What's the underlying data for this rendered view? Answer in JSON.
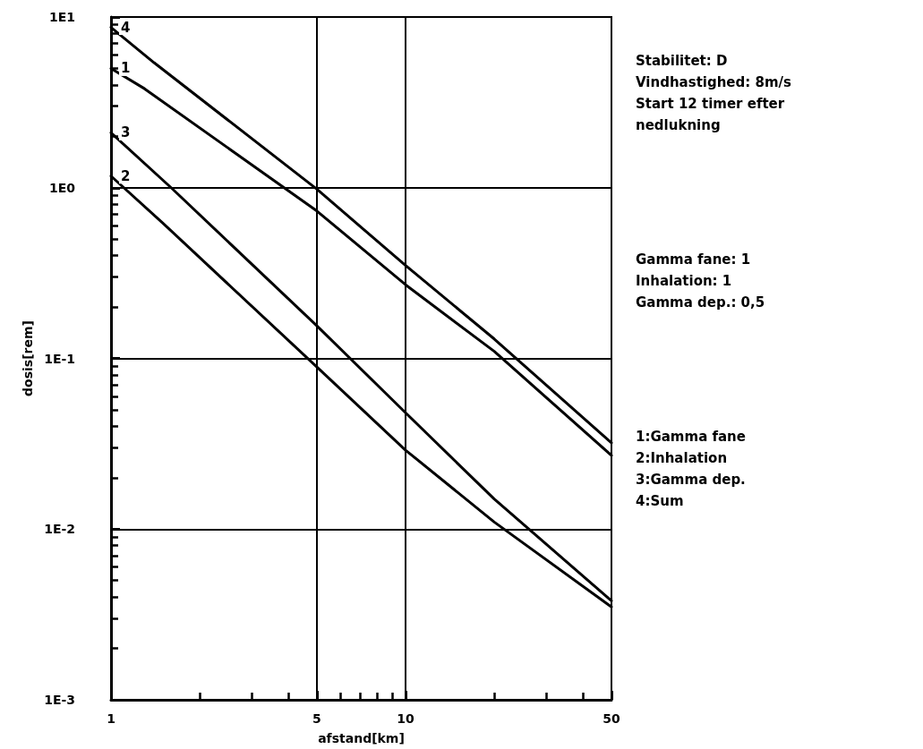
{
  "chart_data": {
    "type": "line",
    "xlabel": "afstand[km]",
    "ylabel": "dosis[rem]",
    "log": "xy",
    "xlim": [
      1,
      50
    ],
    "ylim": [
      0.001,
      10
    ],
    "xticks": [
      1,
      {
        "value": 2,
        "label": null
      },
      {
        "value": 3,
        "label": null
      },
      {
        "value": 4,
        "label": null
      },
      5,
      {
        "value": 6,
        "label": null
      },
      {
        "value": 7,
        "label": null
      },
      {
        "value": 8,
        "label": null
      },
      {
        "value": 9,
        "label": null
      },
      10,
      {
        "value": 20,
        "label": null
      },
      {
        "value": 30,
        "label": null
      },
      {
        "value": 40,
        "label": null
      },
      50
    ],
    "yticks": [
      {
        "value": 0.001,
        "label": "1E-3"
      },
      {
        "value": 0.002,
        "label": null
      },
      {
        "value": 0.003,
        "label": null
      },
      {
        "value": 0.004,
        "label": null
      },
      {
        "value": 0.005,
        "label": null
      },
      {
        "value": 0.006,
        "label": null
      },
      {
        "value": 0.007,
        "label": null
      },
      {
        "value": 0.008,
        "label": null
      },
      {
        "value": 0.009,
        "label": null
      },
      {
        "value": 0.01,
        "label": "1E-2"
      },
      {
        "value": 0.02,
        "label": null
      },
      {
        "value": 0.03,
        "label": null
      },
      {
        "value": 0.04,
        "label": null
      },
      {
        "value": 0.05,
        "label": null
      },
      {
        "value": 0.06,
        "label": null
      },
      {
        "value": 0.07,
        "label": null
      },
      {
        "value": 0.08,
        "label": null
      },
      {
        "value": 0.09,
        "label": null
      },
      {
        "value": 0.1,
        "label": "1E-1"
      },
      {
        "value": 0.2,
        "label": null
      },
      {
        "value": 0.3,
        "label": null
      },
      {
        "value": 0.4,
        "label": null
      },
      {
        "value": 0.5,
        "label": null
      },
      {
        "value": 0.6,
        "label": null
      },
      {
        "value": 0.7,
        "label": null
      },
      {
        "value": 0.8,
        "label": null
      },
      {
        "value": 0.9,
        "label": null
      },
      {
        "value": 1,
        "label": "1E0"
      },
      {
        "value": 2,
        "label": null
      },
      {
        "value": 3,
        "label": null
      },
      {
        "value": 4,
        "label": null
      },
      {
        "value": 5,
        "label": null
      },
      {
        "value": 6,
        "label": null
      },
      {
        "value": 7,
        "label": null
      },
      {
        "value": 8,
        "label": null
      },
      {
        "value": 9,
        "label": null
      },
      {
        "value": 10,
        "label": "1E1"
      }
    ],
    "grid": true,
    "legend": "top left",
    "marker": "none",
    "line_style": "solid",
    "series": [
      {
        "name": "4",
        "color": "#000000",
        "x": [
          1,
          1.4,
          5,
          10,
          20,
          50
        ],
        "values": [
          8.7,
          5.4,
          0.98,
          0.35,
          0.13,
          0.032
        ]
      },
      {
        "name": "1",
        "color": "#000000",
        "x": [
          1,
          1.3,
          5,
          10,
          20,
          50
        ],
        "values": [
          5,
          3.8,
          0.73,
          0.27,
          0.11,
          0.027
        ]
      },
      {
        "name": "3",
        "color": "#000000",
        "x": [
          1,
          1.6,
          5,
          10,
          20,
          50
        ],
        "values": [
          2.1,
          1,
          0.155,
          0.048,
          0.015,
          0.0038
        ]
      },
      {
        "name": "2",
        "color": "#000000",
        "x": [
          1,
          1.5,
          5,
          10,
          20,
          50
        ],
        "values": [
          1.17,
          0.62,
          0.089,
          0.029,
          0.011,
          0.0035
        ]
      }
    ],
    "annotations": [
      "Stabilitet: D",
      "Vindhastighed: 8m/s",
      "Start 12 timer efter",
      "nedlukning",
      "Gamma fane: 1",
      "Inhalation: 1",
      "Gamma dep.: 0,5",
      "1:Gamma fane",
      "2:Inhalation",
      "3:Gamma dep.",
      "4:Sum"
    ]
  }
}
